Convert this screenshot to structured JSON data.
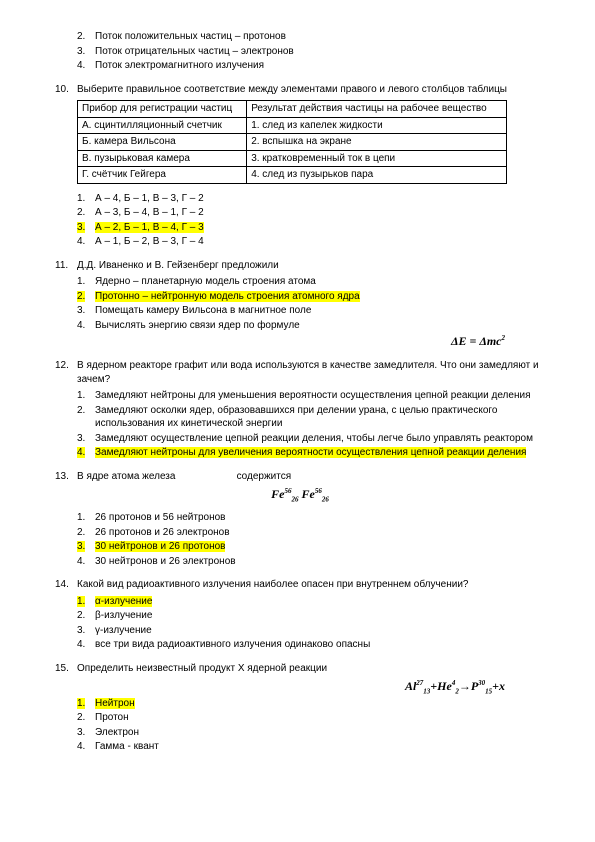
{
  "top_items": [
    {
      "n": "2.",
      "t": "Поток положительных частиц – протонов"
    },
    {
      "n": "3.",
      "t": "Поток отрицательных частиц – электронов"
    },
    {
      "n": "4.",
      "t": "Поток электромагнитного излучения"
    }
  ],
  "q10": {
    "num": "10.",
    "text": "Выберите правильное соответствие между элементами правого и левого столбцов таблицы",
    "table": {
      "h1": "Прибор для регистрации частиц",
      "h2": "Результат действия частицы на рабочее вещество",
      "r1a": "А. сцинтилляционный счетчик",
      "r1b": "1. след из капелек жидкости",
      "r2a": "Б. камера Вильсона",
      "r2b": "2. вспышка на экране",
      "r3a": "В. пузырьковая камера",
      "r3b": "3. кратковременный ток в цепи",
      "r4a": "Г. счётчик Гейгера",
      "r4b": "4. след из пузырьков пара"
    },
    "opts": [
      {
        "n": "1.",
        "t": "А – 4, Б – 1, В – 3, Г – 2"
      },
      {
        "n": "2.",
        "t": "А – 3, Б – 4, В – 1, Г – 2"
      },
      {
        "n": "3.",
        "t": "А – 2, Б – 1, В – 4, Г – 3",
        "hl": true
      },
      {
        "n": "4.",
        "t": "А – 1, Б – 2, В – 3, Г – 4"
      }
    ]
  },
  "q11": {
    "num": "11.",
    "text": "Д.Д. Иваненко и В. Гейзенберг предложили",
    "opts": [
      {
        "n": "1.",
        "t": "Ядерно – планетарную модель строения атома"
      },
      {
        "n": "2.",
        "t": "Протонно – нейтронную модель строения атомного ядра",
        "hl": true
      },
      {
        "n": "3.",
        "t": "Помещать камеру Вильсона в магнитное поле"
      },
      {
        "n": "4.",
        "t": "Вычислять энергию связи ядер по формуле"
      }
    ],
    "formula": "ΔE = Δmc²"
  },
  "q12": {
    "num": "12.",
    "text": "В ядерном реакторе графит или вода используются в качестве замедлителя. Что они замедляют и зачем?",
    "opts": [
      {
        "n": "1.",
        "t": "Замедляют нейтроны для уменьшения вероятности осуществления цепной реакции деления"
      },
      {
        "n": "2.",
        "t": "Замедляют осколки ядер, образовавшихся при делении урана, с целью практического использования их кинетической энергии"
      },
      {
        "n": "3.",
        "t": "Замедляют осуществление цепной реакции деления, чтобы легче было управлять реактором"
      },
      {
        "n": "4.",
        "t": "Замедляют нейтроны для увеличения вероятности осуществления цепной реакции деления",
        "hl": true
      }
    ]
  },
  "q13": {
    "num": "13.",
    "text_a": "В ядре атома железа",
    "text_b": "содержится",
    "opts": [
      {
        "n": "1.",
        "t": "26 протонов и 56 нейтронов"
      },
      {
        "n": "2.",
        "t": "26 протонов и 26 электронов"
      },
      {
        "n": "3.",
        "t": "30 нейтронов и 26 протонов",
        "hl": true
      },
      {
        "n": "4.",
        "t": "30 нейтронов и 26 электронов"
      }
    ]
  },
  "q14": {
    "num": "14.",
    "text": "Какой вид радиоактивного излучения наиболее опасен при внутреннем облучении?",
    "opts": [
      {
        "n": "1.",
        "t": "α-излучение",
        "hl": true
      },
      {
        "n": "2.",
        "t": "β-излучение"
      },
      {
        "n": "3.",
        "t": "γ-излучение"
      },
      {
        "n": "4.",
        "t": "все три вида радиоактивного излучения одинаково опасны"
      }
    ]
  },
  "q15": {
    "num": "15.",
    "text": "Определить неизвестный продукт X ядерной реакции",
    "opts": [
      {
        "n": "1.",
        "t": "Нейтрон",
        "hl": true
      },
      {
        "n": "2.",
        "t": "Протон"
      },
      {
        "n": "3.",
        "t": "Электрон"
      },
      {
        "n": "4.",
        "t": "Гамма - квант"
      }
    ]
  }
}
